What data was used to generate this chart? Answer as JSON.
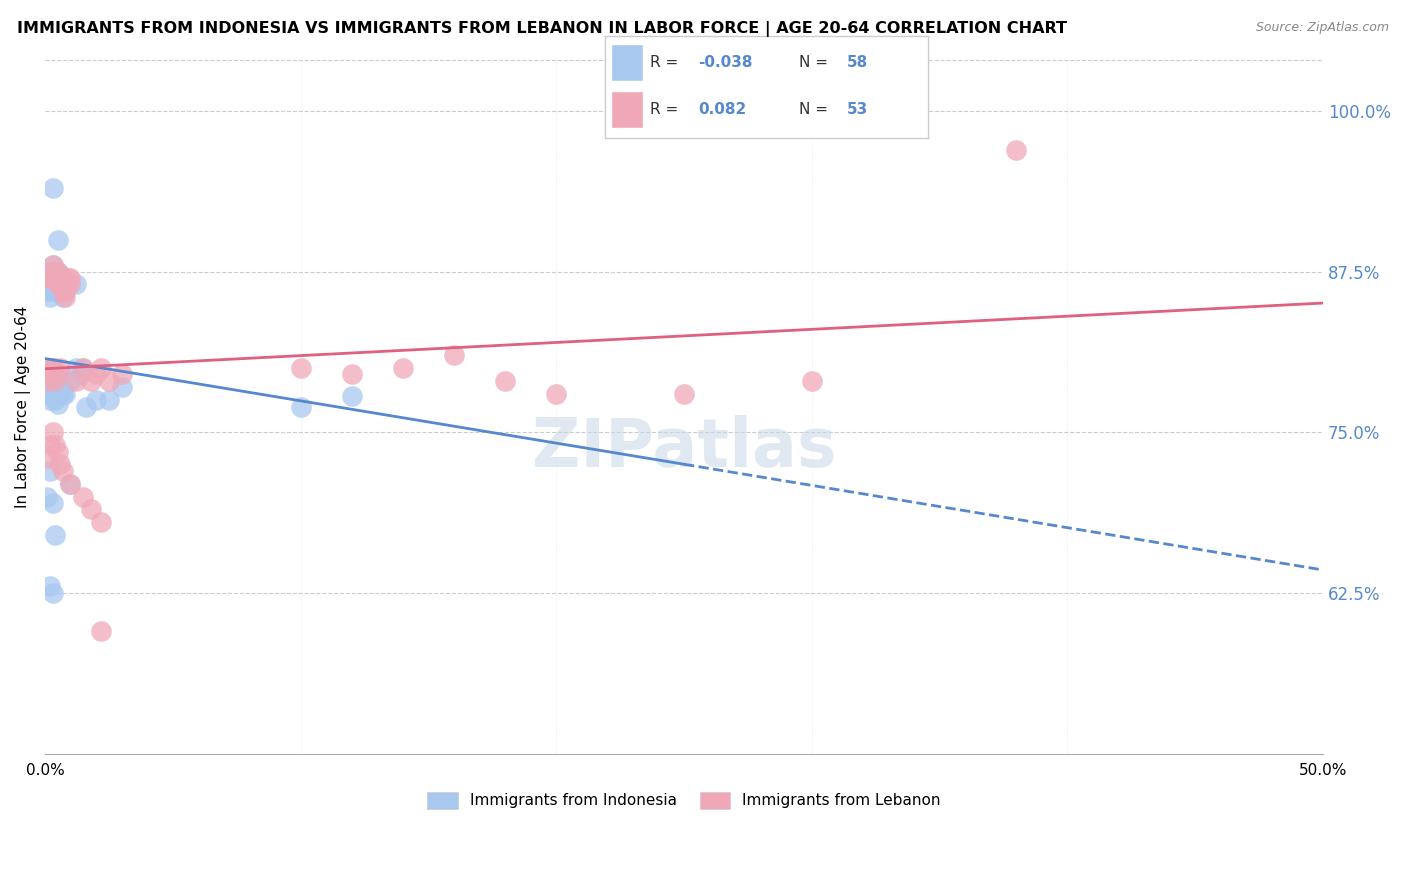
{
  "title": "IMMIGRANTS FROM INDONESIA VS IMMIGRANTS FROM LEBANON IN LABOR FORCE | AGE 20-64 CORRELATION CHART",
  "source": "Source: ZipAtlas.com",
  "ylabel": "In Labor Force | Age 20-64",
  "xlim": [
    0.0,
    0.5
  ],
  "ylim": [
    0.5,
    1.04
  ],
  "yticks": [
    0.625,
    0.75,
    0.875,
    1.0
  ],
  "ytick_labels": [
    "62.5%",
    "75.0%",
    "87.5%",
    "100.0%"
  ],
  "indonesia_color": "#a8c8f0",
  "lebanon_color": "#f0a8b8",
  "indonesia_line_color": "#5588cc",
  "lebanon_line_color": "#e06080",
  "watermark": "ZIPatlas",
  "legend_R_indo": "-0.038",
  "legend_N_indo": "58",
  "legend_R_leb": "0.082",
  "legend_N_leb": "53",
  "legend_label_indo": "Immigrants from Indonesia",
  "legend_label_leb": "Immigrants from Lebanon",
  "indo_x": [
    0.003,
    0.005,
    0.012,
    0.001,
    0.001,
    0.002,
    0.002,
    0.003,
    0.003,
    0.004,
    0.004,
    0.005,
    0.005,
    0.006,
    0.006,
    0.007,
    0.008,
    0.009,
    0.01,
    0.012,
    0.014,
    0.015,
    0.002,
    0.003,
    0.003,
    0.004,
    0.005,
    0.006,
    0.007,
    0.001,
    0.001,
    0.002,
    0.002,
    0.003,
    0.003,
    0.004,
    0.004,
    0.005,
    0.006,
    0.007,
    0.008,
    0.016,
    0.02,
    0.025,
    0.03,
    0.1,
    0.12,
    0.001,
    0.002,
    0.003,
    0.002,
    0.003,
    0.004,
    0.01,
    0.002,
    0.003,
    0.003,
    0.004
  ],
  "indo_y": [
    0.94,
    0.9,
    0.865,
    0.87,
    0.86,
    0.87,
    0.865,
    0.88,
    0.875,
    0.87,
    0.86,
    0.875,
    0.865,
    0.87,
    0.86,
    0.855,
    0.86,
    0.865,
    0.79,
    0.8,
    0.795,
    0.8,
    0.79,
    0.8,
    0.79,
    0.795,
    0.785,
    0.79,
    0.78,
    0.78,
    0.79,
    0.78,
    0.775,
    0.78,
    0.785,
    0.778,
    0.775,
    0.772,
    0.78,
    0.785,
    0.78,
    0.77,
    0.775,
    0.775,
    0.785,
    0.77,
    0.778,
    0.7,
    0.72,
    0.695,
    0.63,
    0.625,
    0.67,
    0.71,
    0.855,
    0.86,
    0.875,
    0.87
  ],
  "leb_x": [
    0.001,
    0.002,
    0.002,
    0.003,
    0.003,
    0.004,
    0.004,
    0.005,
    0.005,
    0.006,
    0.006,
    0.007,
    0.007,
    0.008,
    0.008,
    0.009,
    0.01,
    0.01,
    0.001,
    0.002,
    0.003,
    0.004,
    0.003,
    0.005,
    0.006,
    0.012,
    0.015,
    0.018,
    0.02,
    0.022,
    0.025,
    0.03,
    0.1,
    0.12,
    0.14,
    0.16,
    0.18,
    0.2,
    0.25,
    0.3,
    0.001,
    0.002,
    0.003,
    0.004,
    0.005,
    0.006,
    0.007,
    0.01,
    0.015,
    0.018,
    0.022,
    0.022,
    0.38
  ],
  "leb_y": [
    0.87,
    0.875,
    0.87,
    0.88,
    0.87,
    0.875,
    0.87,
    0.875,
    0.865,
    0.87,
    0.865,
    0.86,
    0.87,
    0.86,
    0.855,
    0.87,
    0.865,
    0.87,
    0.79,
    0.8,
    0.795,
    0.79,
    0.8,
    0.795,
    0.8,
    0.79,
    0.8,
    0.79,
    0.795,
    0.8,
    0.79,
    0.795,
    0.8,
    0.795,
    0.8,
    0.81,
    0.79,
    0.78,
    0.78,
    0.79,
    0.73,
    0.74,
    0.75,
    0.74,
    0.735,
    0.725,
    0.72,
    0.71,
    0.7,
    0.69,
    0.68,
    0.595,
    0.97
  ]
}
